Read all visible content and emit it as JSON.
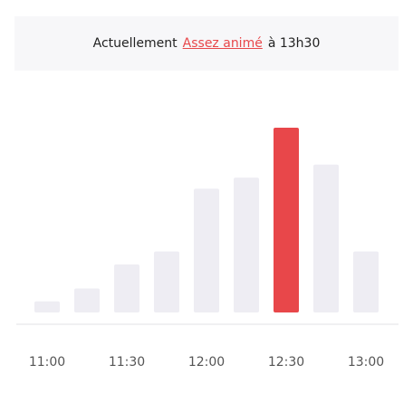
{
  "header": {
    "prefix": "Actuellement",
    "status": "Assez animé",
    "suffix": "à 13h30"
  },
  "chart_data": {
    "type": "bar",
    "categories": [
      "11:00",
      null,
      "11:30",
      null,
      "12:00",
      null,
      "12:30",
      null,
      "13:00"
    ],
    "values": [
      6,
      13,
      26,
      33,
      67,
      73,
      100,
      80,
      33
    ],
    "ylim": [
      0,
      100
    ],
    "color": "#eeedf3",
    "highlight_color": "#e8474a",
    "highlight_index": 6
  }
}
